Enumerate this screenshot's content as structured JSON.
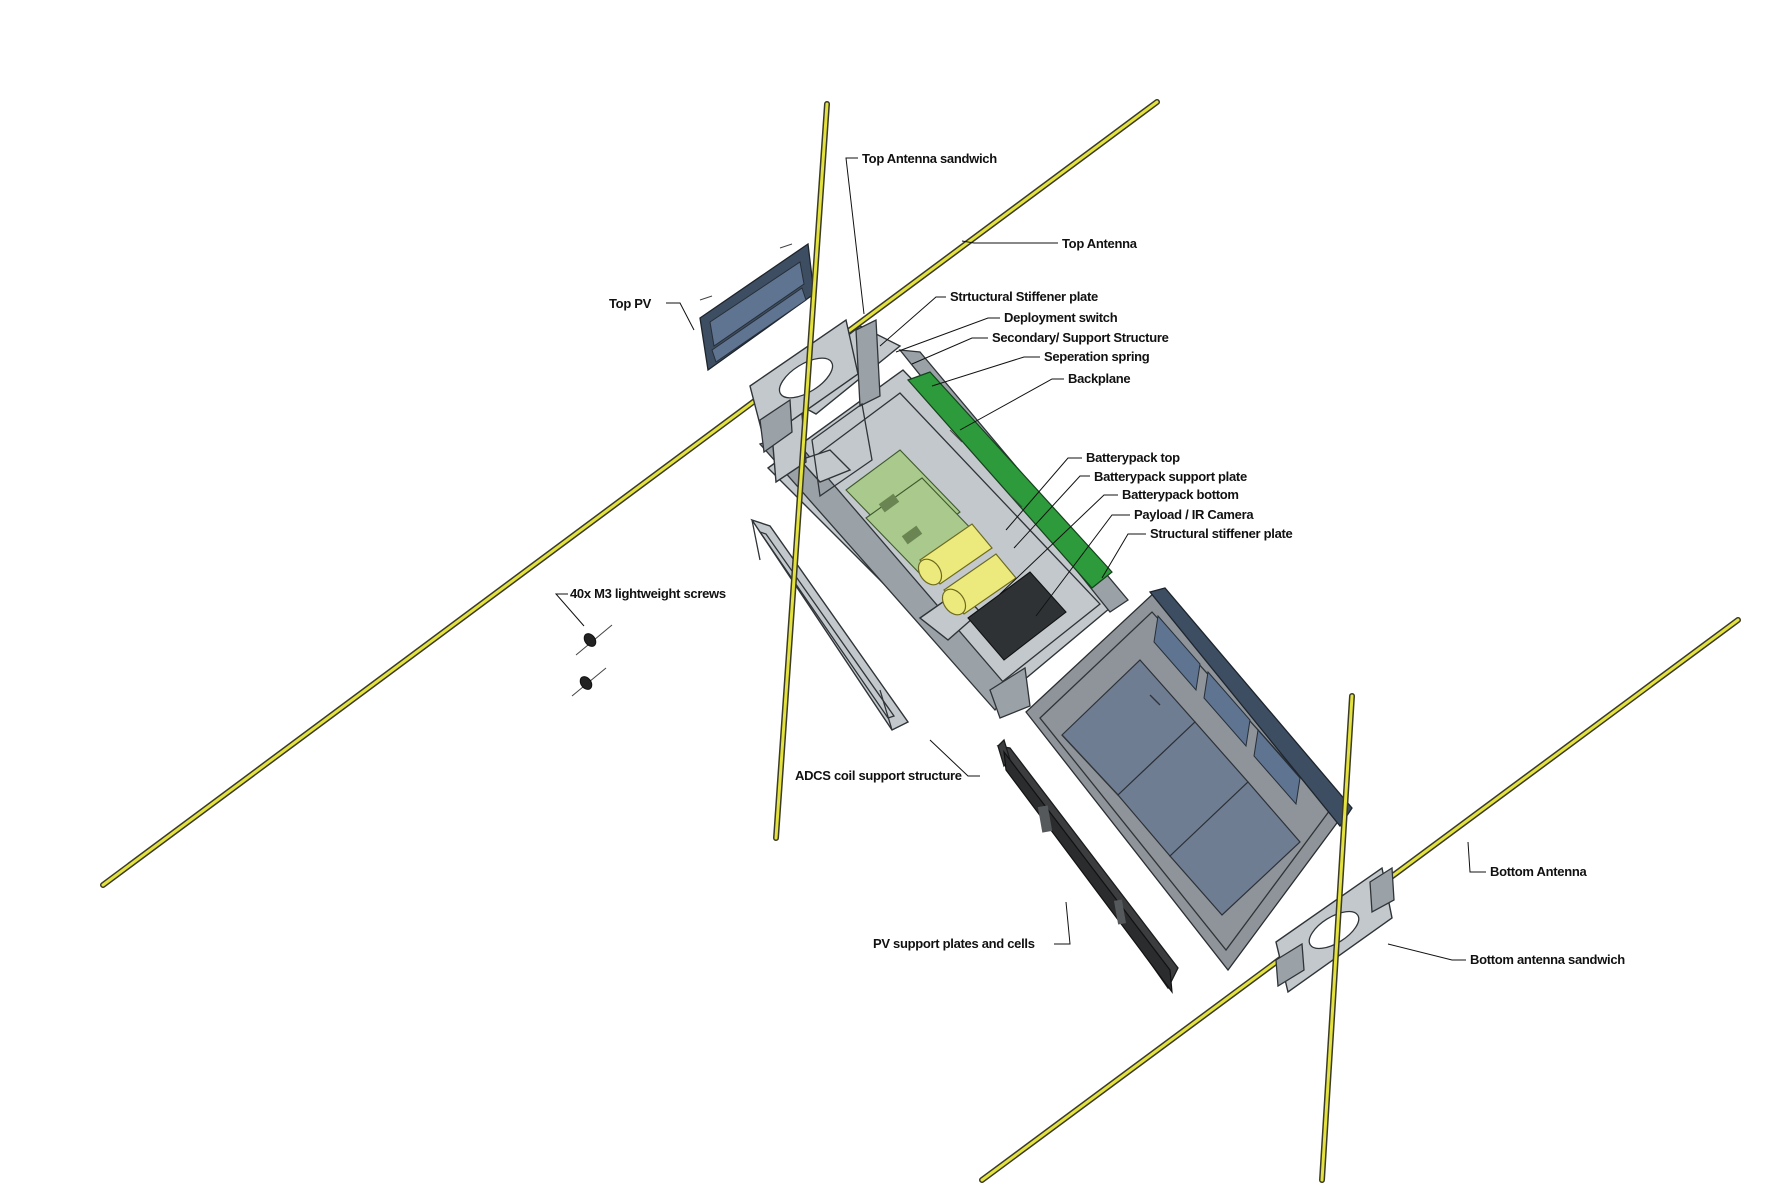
{
  "diagram": {
    "labels": {
      "top_antenna_sandwich": "Top Antenna sandwich",
      "top_antenna": "Top Antenna",
      "top_pv": "Top PV",
      "structural_stiffener_plate_top": "Strtuctural Stiffener plate",
      "deployment_switch": "Deployment switch",
      "secondary_support_structure": "Secondary/ Support Structure",
      "separation_spring": "Seperation spring",
      "backplane": "Backplane",
      "batterypack_top": "Batterypack top",
      "batterypack_support_plate": "Batterypack support plate",
      "batterypack_bottom": "Batterypack bottom",
      "payload_ir_camera": "Payload / IR Camera",
      "structural_stiffener_plate_bottom": "Structural stiffener plate",
      "m3_screws": "40x M3 lightweight screws",
      "adcs_coil_support_structure": "ADCS coil support structure",
      "pv_support_plates_and_cells": "PV support plates and cells",
      "bottom_antenna": "Bottom Antenna",
      "bottom_antenna_sandwich": "Bottom antenna sandwich"
    },
    "colors": {
      "antenna": "#e4e23e",
      "structure": "#c3c8cc",
      "solar_panel": "#3e4e62",
      "backplane": "#2d9a3c",
      "battery": "#ecea7c"
    }
  }
}
